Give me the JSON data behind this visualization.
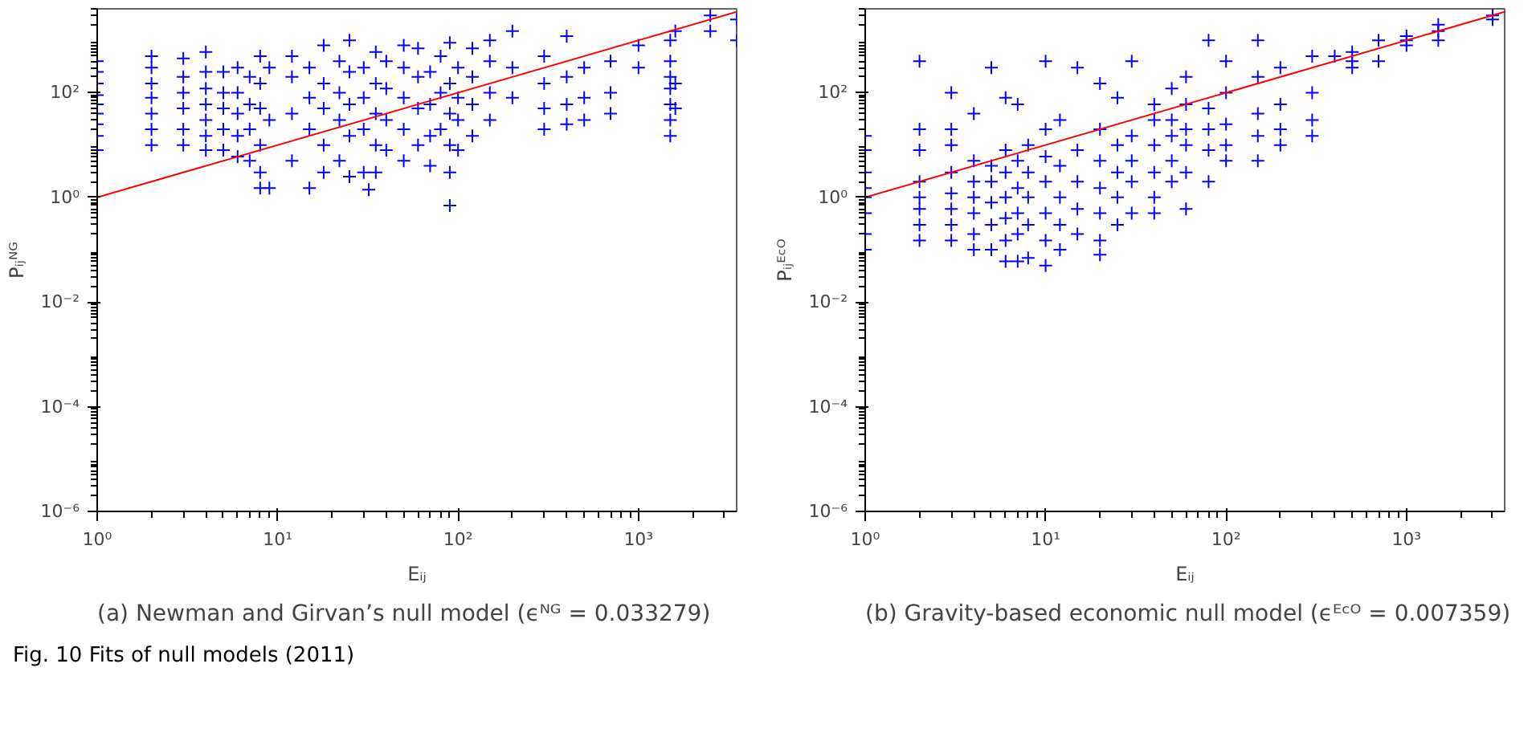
{
  "chart_data": [
    {
      "type": "scatter",
      "title": "(a)  Newman and Girvan’s null model (ϵᴺᴳ = 0.033279)",
      "xlabel": "Eᵢⱼ",
      "ylabel": "Pᵢⱼᴺᴳ",
      "log": "xy",
      "xlim": [
        1,
        3500
      ],
      "ylim": [
        1e-06,
        4000
      ],
      "xticks": [
        {
          "value": 1,
          "label": "10⁰"
        },
        {
          "value": 10,
          "label": "10¹"
        },
        {
          "value": 100,
          "label": "10²"
        },
        {
          "value": 1000,
          "label": "10³"
        }
      ],
      "yticks": [
        {
          "value": 1e-06,
          "label": "10⁻⁶"
        },
        {
          "value": 0.0001,
          "label": "10⁻⁴"
        },
        {
          "value": 0.01,
          "label": "10⁻²"
        },
        {
          "value": 1,
          "label": "10⁰"
        },
        {
          "value": 100,
          "label": "10²"
        }
      ],
      "annotations": [
        "Fig. 10  Fits of null models (2011)"
      ],
      "series": [
        {
          "marker": "cross",
          "color": "#0000ff",
          "x": [
            1,
            1,
            1,
            1,
            1,
            1,
            1,
            1,
            1,
            2,
            2,
            2,
            2,
            2,
            2,
            2,
            3,
            3,
            3,
            3,
            3,
            3,
            4,
            4,
            4,
            4,
            4,
            4,
            4,
            5,
            5,
            5,
            5,
            5,
            6,
            6,
            6,
            6,
            6,
            7,
            7,
            7,
            7,
            8,
            8,
            8,
            8,
            8,
            8,
            9,
            9,
            9,
            12,
            12,
            12,
            12,
            15,
            15,
            15,
            15,
            18,
            18,
            18,
            18,
            18,
            22,
            22,
            22,
            22,
            25,
            25,
            25,
            25,
            25,
            30,
            30,
            30,
            30,
            32,
            35,
            35,
            35,
            35,
            35,
            40,
            40,
            40,
            40,
            50,
            50,
            50,
            50,
            50,
            60,
            60,
            60,
            60,
            70,
            70,
            70,
            70,
            80,
            80,
            80,
            90,
            90,
            90,
            90,
            90,
            90,
            100,
            100,
            100,
            100,
            120,
            120,
            120,
            120,
            150,
            150,
            150,
            150,
            200,
            200,
            200,
            300,
            300,
            300,
            300,
            400,
            400,
            400,
            400,
            500,
            500,
            500,
            700,
            700,
            700,
            1000,
            1000,
            1500,
            1500,
            1500,
            1500,
            1500,
            1500,
            1500,
            1600,
            1600,
            1600,
            2500,
            2500,
            3500,
            3500
          ],
          "values": [
            8,
            15,
            25,
            40,
            60,
            90,
            150,
            250,
            400,
            10,
            20,
            40,
            80,
            150,
            300,
            500,
            10,
            20,
            50,
            100,
            200,
            450,
            8,
            15,
            30,
            60,
            120,
            250,
            600,
            8,
            20,
            50,
            100,
            250,
            6,
            15,
            40,
            100,
            300,
            5,
            20,
            60,
            200,
            3,
            1.5,
            10,
            50,
            150,
            500,
            1.5,
            30,
            300,
            5,
            40,
            200,
            500,
            1.5,
            20,
            80,
            300,
            3,
            10,
            50,
            150,
            800,
            5,
            30,
            100,
            400,
            2.5,
            15,
            60,
            250,
            1000,
            3,
            20,
            80,
            300,
            1.4,
            3,
            10,
            40,
            150,
            600,
            8,
            30,
            120,
            400,
            5,
            20,
            80,
            300,
            800,
            10,
            50,
            200,
            700,
            4,
            15,
            60,
            250,
            20,
            100,
            500,
            0.7,
            3,
            10,
            40,
            150,
            900,
            8,
            30,
            80,
            300,
            15,
            60,
            200,
            700,
            30,
            100,
            400,
            1000,
            80,
            300,
            1500,
            20,
            50,
            150,
            500,
            25,
            60,
            200,
            1200,
            30,
            80,
            300,
            40,
            100,
            400,
            300,
            800,
            15,
            30,
            60,
            120,
            200,
            400,
            1000,
            50,
            150,
            1500,
            1500,
            3000,
            1000,
            2500
          ]
        },
        {
          "type": "line",
          "color": "#ff0000",
          "x": [
            1,
            3500
          ],
          "values": [
            1,
            3500
          ]
        }
      ]
    },
    {
      "type": "scatter",
      "title": "(b)  Gravity-based economic null model (ϵᴱᶜᴼ = 0.007359)",
      "xlabel": "Eᵢⱼ",
      "ylabel": "Pᵢⱼᴱᶜᴼ",
      "log": "xy",
      "xlim": [
        1,
        3500
      ],
      "ylim": [
        1e-06,
        4000
      ],
      "xticks": [
        {
          "value": 1,
          "label": "10⁰"
        },
        {
          "value": 10,
          "label": "10¹"
        },
        {
          "value": 100,
          "label": "10²"
        },
        {
          "value": 1000,
          "label": "10³"
        }
      ],
      "yticks": [
        {
          "value": 1e-06,
          "label": "10⁻⁶"
        },
        {
          "value": 0.0001,
          "label": "10⁻⁴"
        },
        {
          "value": 0.01,
          "label": "10⁻²"
        },
        {
          "value": 1,
          "label": "10⁰"
        },
        {
          "value": 100,
          "label": "10²"
        }
      ],
      "series": [
        {
          "marker": "cross",
          "color": "#0000ff",
          "x": [
            1,
            1,
            1,
            1,
            1,
            1,
            1,
            1,
            2,
            2,
            2,
            2,
            2,
            2,
            2,
            2,
            3,
            3,
            3,
            3,
            3,
            3,
            3,
            3,
            4,
            4,
            4,
            4,
            4,
            4,
            4,
            5,
            5,
            5,
            5,
            5,
            5,
            6,
            6,
            6,
            6,
            6,
            6,
            6,
            7,
            7,
            7,
            7,
            7,
            7,
            8,
            8,
            8,
            8,
            8,
            10,
            10,
            10,
            10,
            10,
            10,
            10,
            12,
            12,
            12,
            12,
            12,
            15,
            15,
            15,
            15,
            15,
            20,
            20,
            20,
            20,
            20,
            20,
            20,
            25,
            25,
            25,
            25,
            25,
            30,
            30,
            30,
            30,
            30,
            40,
            40,
            40,
            40,
            40,
            40,
            50,
            50,
            50,
            50,
            50,
            60,
            60,
            60,
            60,
            60,
            60,
            80,
            80,
            80,
            80,
            80,
            100,
            100,
            100,
            100,
            100,
            150,
            150,
            150,
            150,
            150,
            200,
            200,
            200,
            200,
            300,
            300,
            300,
            300,
            400,
            500,
            500,
            500,
            700,
            700,
            1000,
            1000,
            1000,
            1500,
            1500,
            1500,
            3000,
            3000
          ],
          "values": [
            0.1,
            0.2,
            0.5,
            1,
            1.5,
            3,
            8,
            15,
            0.15,
            0.3,
            0.6,
            1,
            2,
            8,
            20,
            400,
            0.15,
            0.3,
            0.6,
            1.2,
            3,
            10,
            20,
            100,
            0.1,
            0.2,
            0.5,
            1,
            2,
            5,
            40,
            0.1,
            0.3,
            0.8,
            2,
            4,
            300,
            0.06,
            0.15,
            0.4,
            1,
            3,
            8,
            80,
            0.06,
            0.2,
            0.5,
            1.5,
            5,
            60,
            0.07,
            0.3,
            1,
            3,
            10,
            0.05,
            0.15,
            0.5,
            2,
            6,
            20,
            400,
            0.1,
            0.3,
            1,
            4,
            30,
            0.2,
            0.6,
            2,
            8,
            300,
            0.08,
            0.15,
            0.5,
            1.5,
            5,
            20,
            150,
            0.3,
            1,
            3,
            10,
            80,
            0.5,
            2,
            5,
            15,
            400,
            0.5,
            1,
            3,
            10,
            30,
            60,
            2,
            5,
            15,
            30,
            120,
            0.6,
            3,
            10,
            20,
            60,
            200,
            2,
            8,
            20,
            50,
            1000,
            5,
            10,
            25,
            100,
            400,
            5,
            15,
            40,
            200,
            1000,
            10,
            20,
            60,
            300,
            15,
            30,
            100,
            500,
            500,
            300,
            400,
            600,
            400,
            1000,
            800,
            1000,
            1200,
            1000,
            1500,
            2000,
            2500,
            3000
          ]
        },
        {
          "type": "line",
          "color": "#ff0000",
          "x": [
            1,
            3500
          ],
          "values": [
            1,
            3500
          ]
        }
      ]
    }
  ]
}
